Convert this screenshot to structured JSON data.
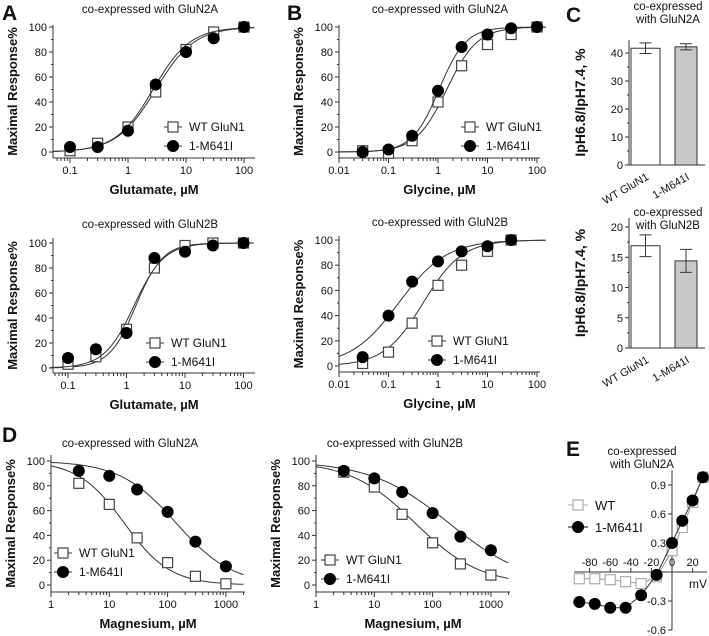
{
  "panel_labels": [
    "A",
    "B",
    "C",
    "D",
    "E"
  ],
  "chart_data": [
    {
      "panel": "A",
      "type": "scatter",
      "title": "co-expressed with GluN2A",
      "xlabel": "Glutamate, µM",
      "ylabel": "Maximal Response%",
      "xscale": "log",
      "xlim": [
        0.05,
        150
      ],
      "ylim": [
        -5,
        105
      ],
      "xticks": [
        0.1,
        1,
        10,
        100
      ],
      "xtick_labels": [
        "0.1",
        "1",
        "10",
        "100"
      ],
      "yticks": [
        0,
        20,
        40,
        60,
        80,
        100
      ],
      "ytick_labels": [
        "0",
        "20",
        "40",
        "60",
        "80",
        "100"
      ],
      "legend": "bottom-right",
      "series": [
        {
          "name": "WT GluN1",
          "marker": "open-square",
          "x": [
            0.1,
            0.3,
            1,
            3,
            10,
            30,
            100
          ],
          "y": [
            1,
            7,
            20,
            48,
            82,
            96,
            100
          ]
        },
        {
          "name": "1-M641I",
          "marker": "filled-circle",
          "x": [
            0.1,
            0.3,
            1,
            3,
            10,
            30,
            100
          ],
          "y": [
            4,
            4,
            17,
            54,
            80,
            91,
            100
          ]
        }
      ]
    },
    {
      "panel": "A",
      "type": "scatter",
      "title": "co-expressed with GluN2B",
      "xlabel": "Glutamate, µM",
      "ylabel": "Maximal Response%",
      "xscale": "log",
      "xlim": [
        0.05,
        150
      ],
      "ylim": [
        -5,
        105
      ],
      "xticks": [
        0.1,
        1,
        10,
        100
      ],
      "xtick_labels": [
        "0.1",
        "1",
        "10",
        "100"
      ],
      "yticks": [
        0,
        20,
        40,
        60,
        80,
        100
      ],
      "ytick_labels": [
        "0",
        "20",
        "40",
        "60",
        "80",
        "100"
      ],
      "legend": "bottom-right",
      "series": [
        {
          "name": "WT GluN1",
          "marker": "open-square",
          "x": [
            0.1,
            0.3,
            1,
            3,
            10,
            30,
            100
          ],
          "y": [
            3,
            9,
            31,
            80,
            98,
            100,
            100
          ]
        },
        {
          "name": "1-M641I",
          "marker": "filled-circle",
          "x": [
            0.1,
            0.3,
            1,
            3,
            10,
            30,
            100
          ],
          "y": [
            8,
            15,
            28,
            88,
            93,
            98,
            100
          ]
        }
      ]
    },
    {
      "panel": "B",
      "type": "scatter",
      "title": "co-expressed with GluN2A",
      "xlabel": "Glycine, µM",
      "ylabel": "Maximal Response%",
      "xscale": "log",
      "xlim": [
        0.01,
        150
      ],
      "ylim": [
        -5,
        105
      ],
      "xticks": [
        0.01,
        0.1,
        1,
        10,
        100
      ],
      "xtick_labels": [
        "0.01",
        "0.1",
        "1",
        "10",
        "100"
      ],
      "yticks": [
        0,
        20,
        40,
        60,
        80,
        100
      ],
      "ytick_labels": [
        "0",
        "20",
        "40",
        "60",
        "80",
        "100"
      ],
      "legend": "bottom-right",
      "series": [
        {
          "name": "WT GluN1",
          "marker": "open-square",
          "x": [
            0.03,
            0.1,
            0.3,
            1,
            3,
            10,
            30,
            100
          ],
          "y": [
            1,
            -1,
            9,
            40,
            69,
            86,
            94,
            100
          ]
        },
        {
          "name": "1-M641I",
          "marker": "filled-circle",
          "x": [
            0.03,
            0.1,
            0.3,
            1,
            3,
            10,
            30,
            100
          ],
          "y": [
            0,
            2,
            13,
            49,
            84,
            94,
            99,
            100
          ]
        }
      ]
    },
    {
      "panel": "B",
      "type": "scatter",
      "title": "co-expressed with GluN2B",
      "xlabel": "Glycine, µM",
      "ylabel": "Maximal Response%",
      "xscale": "log",
      "xlim": [
        0.01,
        150
      ],
      "ylim": [
        -5,
        105
      ],
      "xticks": [
        0.01,
        0.1,
        1,
        10,
        100
      ],
      "xtick_labels": [
        "0.01",
        "0.1",
        "1",
        "10",
        "100"
      ],
      "yticks": [
        0,
        20,
        40,
        60,
        80,
        100
      ],
      "ytick_labels": [
        "0",
        "20",
        "40",
        "60",
        "80",
        "100"
      ],
      "legend": "bottom-right",
      "series": [
        {
          "name": "WT GluN1",
          "marker": "open-square",
          "x": [
            0.03,
            0.1,
            0.3,
            1,
            3,
            10,
            30
          ],
          "y": [
            2,
            11,
            34,
            64,
            80,
            91,
            100
          ]
        },
        {
          "name": "1-M641I",
          "marker": "filled-circle",
          "x": [
            0.03,
            0.1,
            0.3,
            1,
            3,
            10,
            30
          ],
          "y": [
            7,
            40,
            67,
            83,
            91,
            95,
            100
          ]
        }
      ]
    },
    {
      "panel": "C",
      "type": "bar",
      "title": [
        "co-expressed",
        "with GluN2A"
      ],
      "ylabel": "IpH6.8/IpH7.4, %",
      "ylim": [
        0,
        45
      ],
      "yticks": [
        0,
        10,
        20,
        30,
        40
      ],
      "ytick_labels": [
        "0",
        "10",
        "20",
        "30",
        "40"
      ],
      "categories": [
        "WT GluN1",
        "1-M641I"
      ],
      "values": [
        41.7,
        42.2
      ],
      "errors": [
        1.9,
        1.1
      ],
      "colors": [
        "#ffffff",
        "#c8c8c8"
      ]
    },
    {
      "panel": "C",
      "type": "bar",
      "title": [
        "co-expressed",
        "with GluN2B"
      ],
      "ylabel": "IpH6.8/IpH7.4, %",
      "ylim": [
        0,
        21
      ],
      "yticks": [
        0,
        5,
        10,
        15,
        20
      ],
      "ytick_labels": [
        "0",
        "5",
        "10",
        "15",
        "20"
      ],
      "categories": [
        "WT GluN1",
        "1-M641I"
      ],
      "values": [
        16.9,
        14.4
      ],
      "errors": [
        1.8,
        1.9
      ],
      "colors": [
        "#ffffff",
        "#c8c8c8"
      ]
    },
    {
      "panel": "D",
      "type": "scatter",
      "title": "co-expressed with GluN2A",
      "xlabel": "Magnesium, µM",
      "ylabel": "Maximal Response%",
      "xscale": "log",
      "xlim": [
        1,
        2000
      ],
      "ylim": [
        -5,
        105
      ],
      "xticks": [
        1,
        10,
        100,
        1000
      ],
      "xtick_labels": [
        "1",
        "10",
        "100",
        "1000"
      ],
      "yticks": [
        0,
        20,
        40,
        60,
        80,
        100
      ],
      "ytick_labels": [
        "0",
        "20",
        "40",
        "60",
        "80",
        "100"
      ],
      "legend": "bottom-left",
      "series": [
        {
          "name": "WT GluN1",
          "marker": "open-square",
          "x": [
            3,
            10,
            30,
            100,
            300,
            1000
          ],
          "y": [
            82,
            65,
            38,
            18,
            7,
            1
          ]
        },
        {
          "name": "1-M641I",
          "marker": "filled-circle",
          "x": [
            3,
            10,
            30,
            100,
            300,
            1000
          ],
          "y": [
            92,
            88,
            77,
            59,
            35,
            15
          ]
        }
      ]
    },
    {
      "panel": "D",
      "type": "scatter",
      "title": "co-expressed with GluN2B",
      "xlabel": "Magnesium, µM",
      "ylabel": "Maximal Response%",
      "xscale": "log",
      "xlim": [
        1,
        2000
      ],
      "ylim": [
        -5,
        105
      ],
      "xticks": [
        1,
        10,
        100,
        1000
      ],
      "xtick_labels": [
        "1",
        "10",
        "100",
        "1000"
      ],
      "yticks": [
        0,
        20,
        40,
        60,
        80,
        100
      ],
      "ytick_labels": [
        "0",
        "20",
        "40",
        "60",
        "80",
        "100"
      ],
      "legend": "bottom-left",
      "series": [
        {
          "name": "WT GluN1",
          "marker": "open-square",
          "x": [
            3,
            10,
            30,
            100,
            300,
            1000
          ],
          "y": [
            91,
            79,
            57,
            34,
            17,
            8
          ]
        },
        {
          "name": "1-M641I",
          "marker": "filled-circle",
          "x": [
            3,
            10,
            30,
            100,
            300,
            1000
          ],
          "y": [
            92,
            86,
            75,
            58,
            39,
            28
          ]
        }
      ]
    },
    {
      "panel": "E",
      "type": "line",
      "title": [
        "co-expressed",
        "with GluN2A"
      ],
      "xlabel": "mV",
      "xlim": [
        -95,
        35
      ],
      "ylim": [
        -0.6,
        1.05
      ],
      "xticks": [
        -80,
        -60,
        -40,
        -20,
        0,
        20
      ],
      "xtick_labels": [
        "-80",
        "-60",
        "-40",
        "-20",
        "0",
        "20"
      ],
      "yticks": [
        -0.6,
        -0.3,
        0.3,
        0.6,
        0.9
      ],
      "ytick_labels": [
        "-0.6",
        "-0.3",
        "0.3",
        "0.6",
        "0.9"
      ],
      "legend": "left",
      "series": [
        {
          "name": "WT",
          "marker": "open-square",
          "x": [
            -90,
            -75,
            -60,
            -45,
            -30,
            -15,
            0,
            10,
            20,
            30
          ],
          "y": [
            -0.07,
            -0.07,
            -0.08,
            -0.1,
            -0.12,
            -0.05,
            0.22,
            0.46,
            0.72,
            0.98
          ]
        },
        {
          "name": "1-M641I",
          "marker": "filled-circle",
          "x": [
            -90,
            -75,
            -60,
            -45,
            -30,
            -15,
            0,
            10,
            20,
            30
          ],
          "y": [
            -0.31,
            -0.33,
            -0.37,
            -0.37,
            -0.24,
            -0.03,
            0.3,
            0.53,
            0.74,
            0.98
          ]
        }
      ]
    }
  ]
}
